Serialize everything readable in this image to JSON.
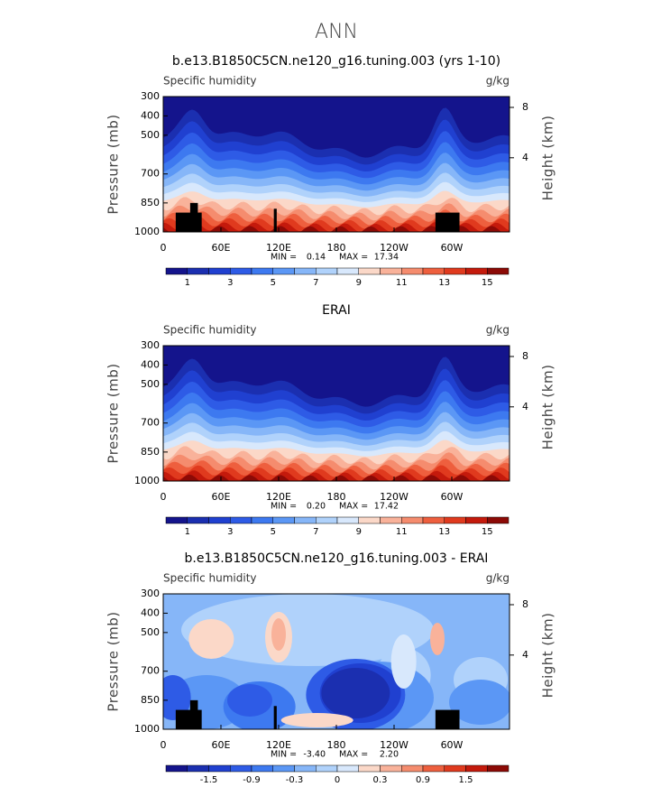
{
  "title": "ANN",
  "chart_data": [
    {
      "type": "contour",
      "title": "b.e13.B1850C5CN.ne120_g16.tuning.003 (yrs 1-10)",
      "left_label": "Specific humidity",
      "right_label": "g/kg",
      "ylabel": "Pressure (mb)",
      "y2label": "Height (km)",
      "xlim": [
        0,
        360
      ],
      "xticks": [
        0,
        {
          "value": 60,
          "label": "60E"
        },
        {
          "value": 120,
          "label": "120E"
        },
        180,
        {
          "value": 240,
          "label": "120W"
        },
        {
          "value": 300,
          "label": "60W"
        }
      ],
      "ylim": [
        1000,
        300
      ],
      "yticks": [
        300,
        400,
        500,
        700,
        850,
        1000
      ],
      "y2ticks": [
        4,
        8
      ],
      "min_label": "MIN =",
      "min": 0.14,
      "max_label": "MAX =",
      "max": 17.34,
      "colorbar": {
        "colors": [
          "#14148c",
          "#1b2fb0",
          "#2040d0",
          "#2e5be6",
          "#3d79f0",
          "#5b97f5",
          "#86b6f8",
          "#b0d2fb",
          "#d8e8fc",
          "#fbd8c8",
          "#f9b29a",
          "#f58c6e",
          "#ee5f3e",
          "#e03a1e",
          "#c41a0c",
          "#8c0a06"
        ],
        "ticks": [
          1,
          3,
          5,
          7,
          9,
          11,
          13,
          15
        ]
      }
    },
    {
      "type": "contour",
      "title": "ERAI",
      "left_label": "Specific humidity",
      "right_label": "g/kg",
      "ylabel": "Pressure (mb)",
      "y2label": "Height (km)",
      "xlim": [
        0,
        360
      ],
      "xticks": [
        0,
        {
          "value": 60,
          "label": "60E"
        },
        {
          "value": 120,
          "label": "120E"
        },
        180,
        {
          "value": 240,
          "label": "120W"
        },
        {
          "value": 300,
          "label": "60W"
        }
      ],
      "ylim": [
        1000,
        300
      ],
      "yticks": [
        300,
        400,
        500,
        700,
        850,
        1000
      ],
      "y2ticks": [
        4,
        8
      ],
      "min_label": "MIN =",
      "min": {
        "value": 0.2,
        "label": "0.20"
      },
      "max_label": "MAX =",
      "max": 17.42,
      "colorbar": {
        "colors": [
          "#14148c",
          "#1b2fb0",
          "#2040d0",
          "#2e5be6",
          "#3d79f0",
          "#5b97f5",
          "#86b6f8",
          "#b0d2fb",
          "#d8e8fc",
          "#fbd8c8",
          "#f9b29a",
          "#f58c6e",
          "#ee5f3e",
          "#e03a1e",
          "#c41a0c",
          "#8c0a06"
        ],
        "ticks": [
          1,
          3,
          5,
          7,
          9,
          11,
          13,
          15
        ]
      }
    },
    {
      "type": "contour",
      "title": "b.e13.B1850C5CN.ne120_g16.tuning.003 - ERAI",
      "left_label": "Specific humidity",
      "right_label": "g/kg",
      "ylabel": "Pressure (mb)",
      "y2label": "Height (km)",
      "xlim": [
        0,
        360
      ],
      "xticks": [
        0,
        {
          "value": 60,
          "label": "60E"
        },
        {
          "value": 120,
          "label": "120E"
        },
        180,
        {
          "value": 240,
          "label": "120W"
        },
        {
          "value": 300,
          "label": "60W"
        }
      ],
      "ylim": [
        1000,
        300
      ],
      "yticks": [
        300,
        400,
        500,
        700,
        850,
        1000
      ],
      "y2ticks": [
        4,
        8
      ],
      "min_label": "MIN =",
      "min": {
        "value": -3.4,
        "label": "-3.40"
      },
      "max_label": "MAX =",
      "max": {
        "value": 2.2,
        "label": "2.20"
      },
      "colorbar": {
        "colors": [
          "#14148c",
          "#1b2fb0",
          "#2040d0",
          "#2e5be6",
          "#3d79f0",
          "#5b97f5",
          "#86b6f8",
          "#b0d2fb",
          "#d8e8fc",
          "#fbd8c8",
          "#f9b29a",
          "#f58c6e",
          "#ee5f3e",
          "#e03a1e",
          "#c41a0c",
          "#8c0a06"
        ],
        "ticks": [
          -1.5,
          -0.9,
          -0.3,
          0,
          0.3,
          0.9,
          1.5
        ]
      }
    }
  ]
}
